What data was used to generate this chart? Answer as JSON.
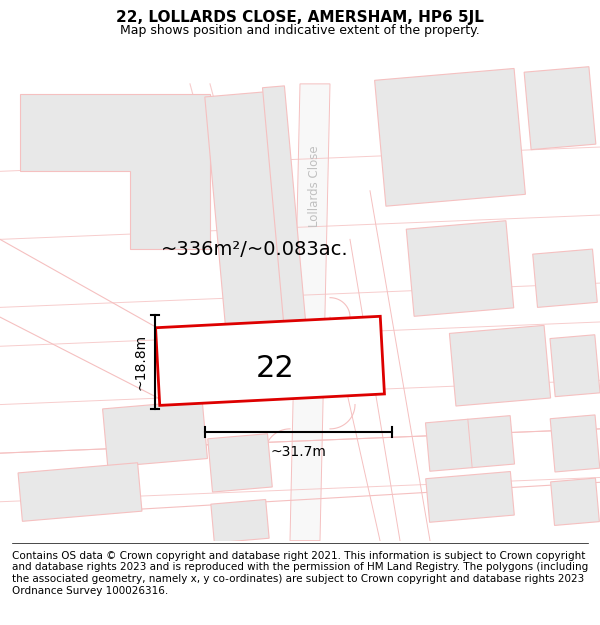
{
  "title": "22, LOLLARDS CLOSE, AMERSHAM, HP6 5JL",
  "subtitle": "Map shows position and indicative extent of the property.",
  "footer": "Contains OS data © Crown copyright and database right 2021. This information is subject to Crown copyright and database rights 2023 and is reproduced with the permission of HM Land Registry. The polygons (including the associated geometry, namely x, y co-ordinates) are subject to Crown copyright and database rights 2023 Ordnance Survey 100026316.",
  "map_bg": "#ffffff",
  "street_color": "#f5c0c0",
  "plot_outline_color": "#dd0000",
  "plot_fill_color": "#ffffff",
  "plot_label": "22",
  "area_label": "~336m²/~0.083ac.",
  "width_label": "~31.7m",
  "height_label": "~18.8m",
  "building_fill": "#e8e8e8",
  "building_stroke": "#f5c0c0",
  "road_label": "Lollards Close",
  "title_fontsize": 11,
  "subtitle_fontsize": 9,
  "footer_fontsize": 7.5,
  "plot_label_fontsize": 22,
  "area_label_fontsize": 14,
  "dim_label_fontsize": 10
}
